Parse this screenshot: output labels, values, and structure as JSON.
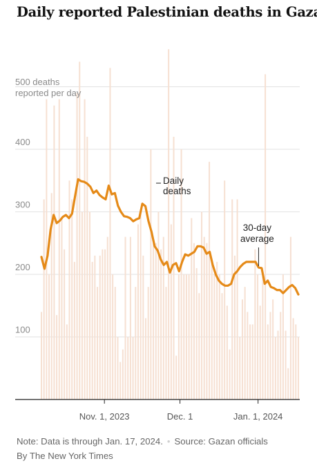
{
  "title": "Daily reported Palestinian deaths in Gaza",
  "note": {
    "data_note": "Note: Data is through Jan. 17, 2024.",
    "source": "Source: Gazan officials",
    "credit": "By The New York Times"
  },
  "chart_data": {
    "type": "bar",
    "title": "Daily reported Palestinian deaths in Gaza",
    "ylabel": "500 deaths reported per day",
    "ylabel_lines": [
      "500 deaths",
      "reported per day"
    ],
    "yticks": [
      100,
      200,
      300,
      400
    ],
    "ylim": [
      0,
      560
    ],
    "grid": true,
    "x_start": "2023-10-07",
    "x_end": "2024-01-17",
    "xticks": [
      {
        "date": "2023-11-01",
        "label": "Nov. 1, 2023"
      },
      {
        "date": "2023-12-01",
        "label": "Dec. 1"
      },
      {
        "date": "2024-01-01",
        "label": "Jan. 1, 2024"
      }
    ],
    "colors": {
      "bars": "#f6e0d2",
      "line": "#e58a18",
      "grid": "#e2e2e2",
      "axis": "#222222"
    },
    "series": [
      {
        "name": "Daily deaths",
        "type": "bar",
        "values": [
          140,
          320,
          480,
          200,
          330,
          470,
          135,
          480,
          290,
          240,
          120,
          350,
          320,
          220,
          490,
          540,
          300,
          480,
          420,
          300,
          220,
          230,
          180,
          230,
          240,
          240,
          260,
          530,
          200,
          180,
          100,
          60,
          80,
          260,
          100,
          260,
          100,
          180,
          280,
          300,
          230,
          130,
          180,
          400,
          250,
          250,
          300,
          240,
          260,
          180,
          560,
          280,
          420,
          70,
          200,
          400,
          200,
          200,
          200,
          290,
          250,
          210,
          170,
          300,
          260,
          250,
          380,
          220,
          200,
          220,
          200,
          170,
          350,
          150,
          80,
          320,
          230,
          320,
          100,
          160,
          180,
          140,
          120,
          120,
          240,
          200,
          150,
          200,
          520,
          120,
          140,
          160,
          100,
          110,
          140,
          200,
          110,
          50,
          260,
          130,
          120,
          100
        ]
      },
      {
        "name": "30-day average",
        "type": "line",
        "values": [
          228,
          209,
          230,
          272,
          295,
          282,
          286,
          292,
          295,
          290,
          297,
          325,
          352,
          349,
          348,
          345,
          340,
          330,
          334,
          327,
          323,
          320,
          342,
          328,
          330,
          310,
          300,
          293,
          292,
          290,
          285,
          288,
          290,
          313,
          309,
          285,
          268,
          245,
          238,
          224,
          215,
          220,
          203,
          215,
          218,
          205,
          220,
          232,
          230,
          233,
          236,
          245,
          245,
          243,
          233,
          236,
          215,
          200,
          190,
          185,
          182,
          182,
          185,
          200,
          205,
          212,
          217,
          220,
          220,
          220,
          220,
          211,
          210,
          185,
          190,
          180,
          178,
          175,
          175,
          170,
          175,
          180,
          183,
          178,
          168
        ]
      }
    ],
    "annotations": [
      {
        "label": "Daily deaths",
        "lines": [
          "Daily",
          "deaths"
        ]
      },
      {
        "label": "30-day average",
        "lines": [
          "30-day",
          "average"
        ]
      }
    ]
  }
}
